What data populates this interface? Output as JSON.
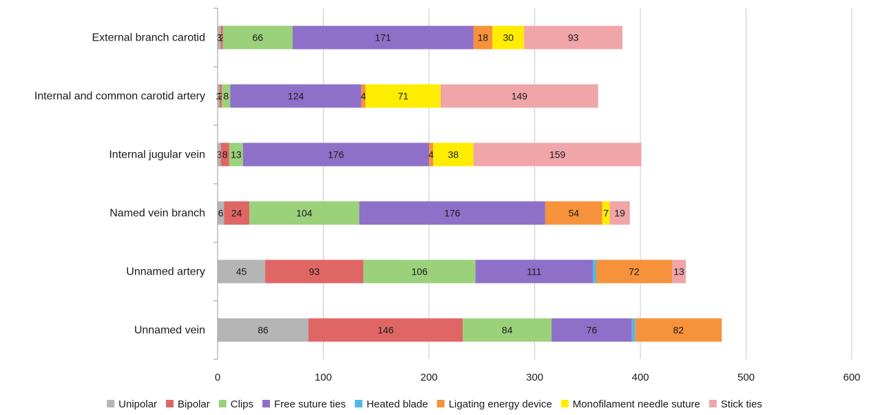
{
  "chart_data": {
    "type": "bar",
    "orientation": "horizontal",
    "stacked": true,
    "categories": [
      "External branch carotid",
      "Internal and common carotid artery",
      "Internal jugular vein",
      "Named vein branch",
      "Unnamed artery",
      "Unnamed vein"
    ],
    "series": [
      {
        "name": "Unipolar",
        "color": "#b5b5b5",
        "values": [
          3,
          2,
          3,
          6,
          45,
          86
        ]
      },
      {
        "name": "Bipolar",
        "color": "#e06666",
        "values": [
          2,
          2,
          8,
          24,
          93,
          146
        ]
      },
      {
        "name": "Clips",
        "color": "#9bd17a",
        "values": [
          66,
          8,
          13,
          104,
          106,
          84
        ]
      },
      {
        "name": "Free suture ties",
        "color": "#8e70c8",
        "values": [
          171,
          124,
          176,
          176,
          111,
          76
        ]
      },
      {
        "name": "Heated blade",
        "color": "#4eb9e6",
        "values": [
          0,
          0,
          0,
          0,
          3,
          3
        ]
      },
      {
        "name": "Ligating energy device",
        "color": "#f6923b",
        "values": [
          18,
          4,
          4,
          54,
          72,
          82
        ]
      },
      {
        "name": "Monofilament needle suture",
        "color": "#ffed00",
        "values": [
          30,
          71,
          38,
          7,
          0,
          0
        ]
      },
      {
        "name": "Stick ties",
        "color": "#f0a5a8",
        "values": [
          93,
          149,
          159,
          19,
          13,
          0
        ]
      }
    ],
    "data_labels": [
      [
        "3",
        "2",
        "66",
        "171",
        "",
        "18",
        "30",
        "93"
      ],
      [
        "2",
        "2",
        "8",
        "124",
        "",
        "4",
        "71",
        "149"
      ],
      [
        "3",
        "8",
        "13",
        "176",
        "",
        "4",
        "38",
        "159"
      ],
      [
        "6",
        "24",
        "104",
        "176",
        "",
        "54",
        "7",
        "19"
      ],
      [
        "45",
        "93",
        "106",
        "111",
        "",
        "72",
        "",
        "13"
      ],
      [
        "86",
        "146",
        "84",
        "76",
        "",
        "82",
        "",
        ""
      ]
    ],
    "xlim": [
      0,
      600
    ],
    "xticks": [
      0,
      100,
      200,
      300,
      400,
      500,
      600
    ],
    "grid": "vertical",
    "legend_position": "bottom",
    "title": "",
    "xlabel": "",
    "ylabel": ""
  }
}
